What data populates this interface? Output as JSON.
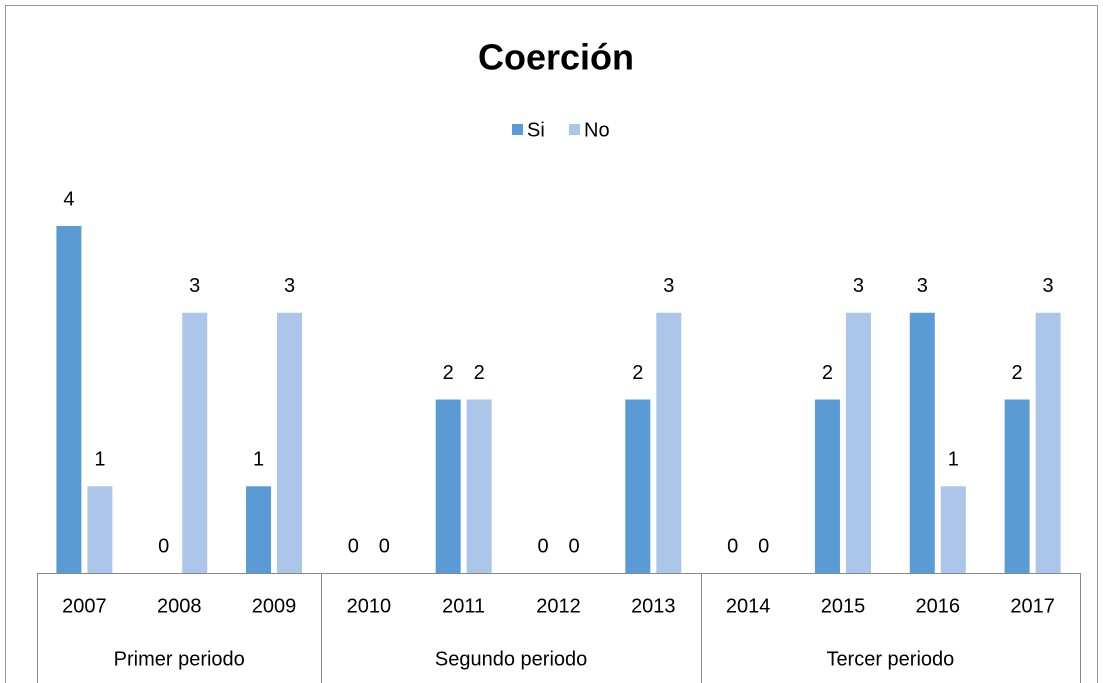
{
  "chart_data": {
    "type": "bar",
    "title": "Coerción",
    "categories": [
      "2007",
      "2008",
      "2009",
      "2010",
      "2011",
      "2012",
      "2013",
      "2014",
      "2015",
      "2016",
      "2017"
    ],
    "groups": [
      {
        "name": "Primer periodo",
        "size": 3
      },
      {
        "name": "Segundo periodo",
        "size": 4
      },
      {
        "name": "Tercer periodo",
        "size": 4
      }
    ],
    "series": [
      {
        "name": "Si",
        "color": "#5b9bd5",
        "values": [
          4,
          0,
          1,
          0,
          2,
          0,
          2,
          0,
          2,
          3,
          2
        ]
      },
      {
        "name": "No",
        "color": "#abc6e8",
        "values": [
          1,
          3,
          3,
          0,
          2,
          0,
          3,
          0,
          3,
          1,
          3
        ]
      }
    ],
    "legend": "top",
    "data_labels": true
  }
}
